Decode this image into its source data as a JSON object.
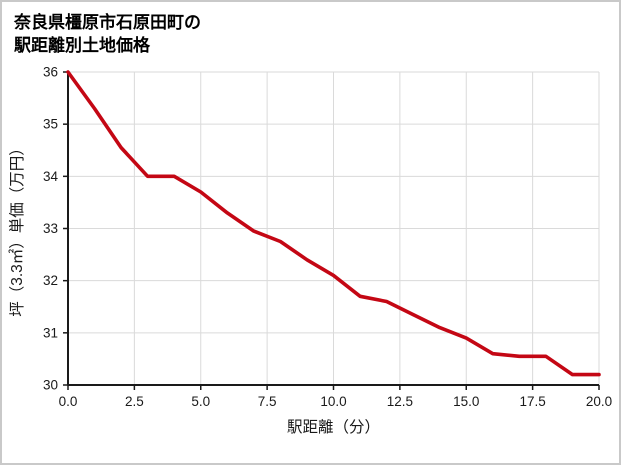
{
  "page": {
    "title_line1": "奈良県橿原市石原田町の",
    "title_line2": "駅距離別土地価格"
  },
  "chart_data": {
    "type": "line",
    "title": "奈良県橿原市石原田町の駅距離別土地価格",
    "xlabel": "駅距離（分）",
    "ylabel": "坪（3.3㎡）単価（万円）",
    "x": [
      0,
      1,
      2,
      3,
      4,
      5,
      6,
      7,
      8,
      9,
      10,
      11,
      12,
      13,
      14,
      15,
      16,
      17,
      18,
      19,
      20
    ],
    "y": [
      36.0,
      35.3,
      34.55,
      34.0,
      34.0,
      33.7,
      33.3,
      32.95,
      32.75,
      32.4,
      32.1,
      31.7,
      31.6,
      31.35,
      31.1,
      30.9,
      30.6,
      30.55,
      30.55,
      30.2,
      30.2
    ],
    "xlim": [
      0,
      20
    ],
    "ylim": [
      30,
      36
    ],
    "xticks": [
      0,
      2.5,
      5,
      7.5,
      10,
      12.5,
      15,
      17.5,
      20
    ],
    "xtick_labels": [
      "0.0",
      "2.5",
      "5.0",
      "7.5",
      "10.0",
      "12.5",
      "15.0",
      "17.5",
      "20.0"
    ],
    "yticks": [
      30,
      31,
      32,
      33,
      34,
      35,
      36
    ],
    "ytick_labels": [
      "30",
      "31",
      "32",
      "33",
      "34",
      "35",
      "36"
    ],
    "grid": true,
    "legend": "none",
    "colors": {
      "line": "#c40714",
      "grid": "#dadada",
      "axis": "#1a1a1a",
      "tick_text": "#1a1a1a",
      "background": "#ffffff"
    }
  }
}
